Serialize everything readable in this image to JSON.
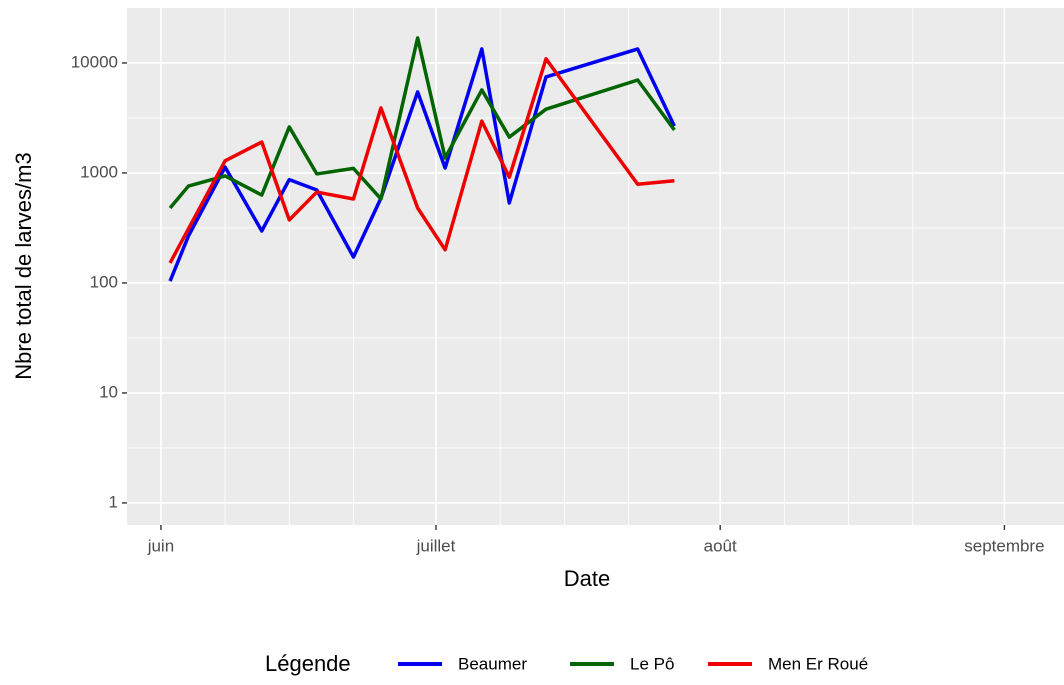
{
  "chart_data": {
    "type": "line",
    "x_label": "Date",
    "y_label": "Nbre total de larves/m3",
    "y_scale": "log",
    "grid": true,
    "legend_position": "bottom",
    "legend_title": "Légende",
    "xlim": [
      -3.7,
      98.5
    ],
    "xticks": [
      {
        "value": 0,
        "label": "juin"
      },
      {
        "value": 30,
        "label": "juillet"
      },
      {
        "value": 61,
        "label": "août"
      },
      {
        "value": 92,
        "label": "septembre"
      }
    ],
    "ylim": [
      0.63,
      31600
    ],
    "yticks": [
      1,
      10,
      100,
      1000,
      10000
    ],
    "series": [
      {
        "name": "Beaumer",
        "color": "#0000ee",
        "x": [
          1,
          3,
          7,
          11,
          14,
          17,
          21,
          24,
          28,
          31,
          35,
          38,
          42,
          52,
          56
        ],
        "values": [
          104,
          267,
          1130,
          297,
          870,
          700,
          172,
          590,
          5450,
          1110,
          13400,
          534,
          7460,
          13400,
          2670
        ]
      },
      {
        "name": "Le Pô",
        "color": "#006400",
        "x": [
          1,
          3,
          7,
          11,
          14,
          17,
          21,
          24,
          28,
          31,
          35,
          38,
          42,
          52,
          56
        ],
        "values": [
          480,
          760,
          940,
          630,
          2620,
          980,
          1100,
          580,
          16900,
          1370,
          5690,
          2120,
          3800,
          7000,
          2460
        ]
      },
      {
        "name": "Men Er Roué",
        "color": "#ee0000",
        "x": [
          1,
          7,
          11,
          14,
          17,
          21,
          24,
          28,
          31,
          35,
          38,
          42,
          52,
          56
        ],
        "values": [
          152,
          1290,
          1910,
          374,
          670,
          580,
          3900,
          480,
          200,
          2960,
          915,
          10900,
          790,
          850
        ]
      }
    ]
  }
}
